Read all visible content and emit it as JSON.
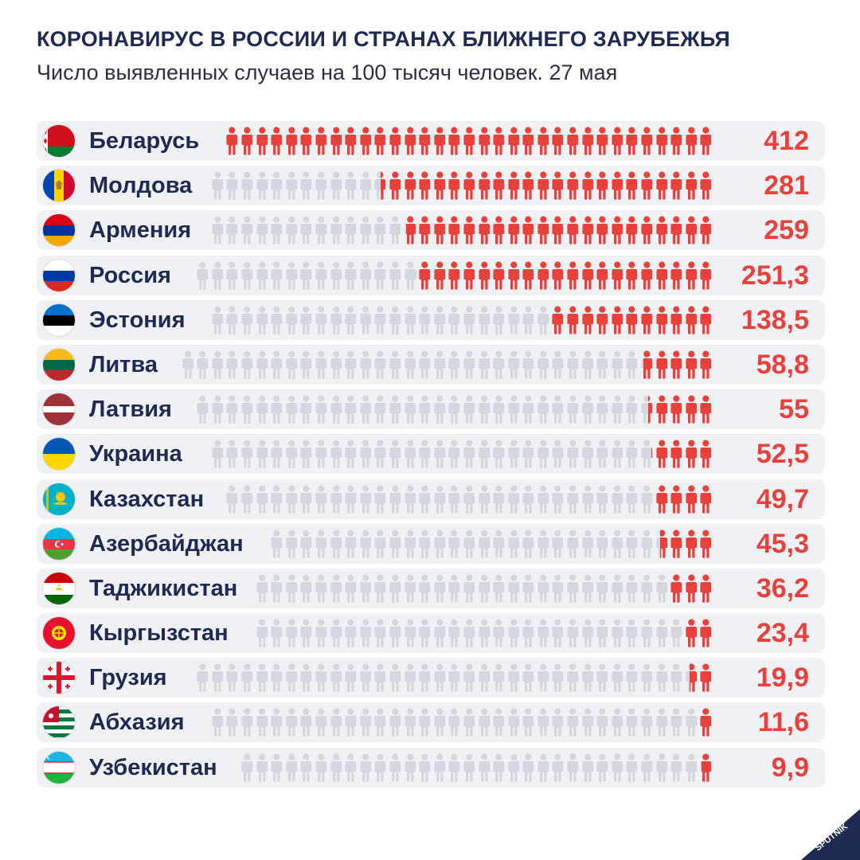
{
  "header": {
    "title": "КОРОНАВИРУС В РОССИИ И СТРАНАХ БЛИЖНЕГО ЗАРУБЕЖЬЯ",
    "subtitle": "Число выявленных случаев на 100 тысяч человек. 27 мая"
  },
  "colors": {
    "active": "#e8413c",
    "inactive": "#d4d7e0",
    "row_bg": "#f0f1f5",
    "title": "#1f2a52"
  },
  "chart_data": {
    "type": "bar",
    "categories": [
      "Беларусь",
      "Молдова",
      "Армения",
      "Россия",
      "Эстония",
      "Литва",
      "Латвия",
      "Украина",
      "Казахстан",
      "Азербайджан",
      "Таджикистан",
      "Кыргызстан",
      "Грузия",
      "Абхазия",
      "Узбекистан"
    ],
    "values": [
      412,
      281,
      259,
      251.3,
      138.5,
      58.8,
      55,
      52.5,
      49.7,
      45.3,
      36.2,
      23.4,
      19.9,
      11.6,
      9.9
    ],
    "value_labels": [
      "412",
      "281",
      "259",
      "251,3",
      "138,5",
      "58,8",
      "55",
      "52,5",
      "49,7",
      "45,3",
      "36,2",
      "23,4",
      "19,9",
      "11,6",
      "9,9"
    ],
    "flag_icons": [
      "belarus-flag-icon",
      "moldova-flag-icon",
      "armenia-flag-icon",
      "russia-flag-icon",
      "estonia-flag-icon",
      "lithuania-flag-icon",
      "latvia-flag-icon",
      "ukraine-flag-icon",
      "kazakhstan-flag-icon",
      "azerbaijan-flag-icon",
      "tajikistan-flag-icon",
      "kyrgyzstan-flag-icon",
      "georgia-flag-icon",
      "abkhazia-flag-icon",
      "uzbekistan-flag-icon"
    ],
    "title": "КОРОНАВИРУС В РОССИИ И СТРАНАХ БЛИЖНЕГО ЗАРУБЕЖЬЯ",
    "subtitle": "Число выявленных случаев на 100 тысяч человек. 27 мая",
    "xlabel": "",
    "ylabel": ""
  },
  "brand": {
    "logo_text": "SPUTNIK",
    "logo_color": "#1f2a52"
  }
}
